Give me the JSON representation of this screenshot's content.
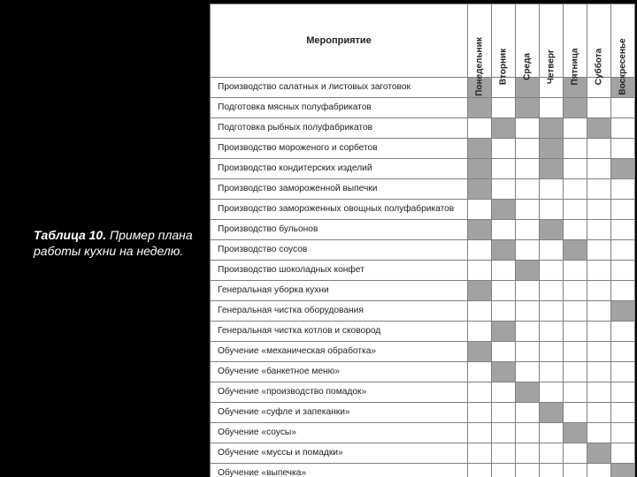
{
  "caption": {
    "bold": "Таблица 10.",
    "rest": " Пример плана работы кухни на неделю."
  },
  "table": {
    "activity_header": "Мероприятие",
    "days": [
      "Понедельник",
      "Вторник",
      "Среда",
      "Четверг",
      "Пятница",
      "Суббота",
      "Воскресенье"
    ],
    "rows": [
      {
        "label": "Производство салатных и листовых заготовок",
        "cells": [
          1,
          0,
          1,
          0,
          1,
          0,
          1
        ]
      },
      {
        "label": "Подготовка мясных полуфабрикатов",
        "cells": [
          1,
          0,
          1,
          0,
          1,
          0,
          0
        ]
      },
      {
        "label": "Подготовка рыбных полуфабрикатов",
        "cells": [
          0,
          1,
          0,
          1,
          0,
          1,
          0
        ]
      },
      {
        "label": "Производство мороженого и сорбетов",
        "cells": [
          1,
          0,
          0,
          1,
          0,
          0,
          0
        ]
      },
      {
        "label": "Производство кондитерских изделий",
        "cells": [
          1,
          0,
          0,
          1,
          0,
          0,
          1
        ]
      },
      {
        "label": "Производство замороженной выпечки",
        "cells": [
          1,
          0,
          0,
          0,
          0,
          0,
          0
        ]
      },
      {
        "label": "Производство замороженных овощных полуфабрикатов",
        "cells": [
          0,
          1,
          0,
          0,
          0,
          0,
          0
        ]
      },
      {
        "label": "Производство бульонов",
        "cells": [
          1,
          0,
          0,
          1,
          0,
          0,
          0
        ]
      },
      {
        "label": "Производство соусов",
        "cells": [
          0,
          1,
          0,
          0,
          1,
          0,
          0
        ]
      },
      {
        "label": "Производство шоколадных конфет",
        "cells": [
          0,
          0,
          1,
          0,
          0,
          0,
          0
        ]
      },
      {
        "label": "Генеральная уборка кухни",
        "cells": [
          1,
          0,
          0,
          0,
          0,
          0,
          0
        ]
      },
      {
        "label": "Генеральная чистка оборудования",
        "cells": [
          0,
          0,
          0,
          0,
          0,
          0,
          1
        ]
      },
      {
        "label": "Генеральная чистка котлов и сковород",
        "cells": [
          0,
          1,
          0,
          0,
          0,
          0,
          0
        ]
      },
      {
        "label": "Обучение «механическая обработка»",
        "cells": [
          1,
          0,
          0,
          0,
          0,
          0,
          0
        ]
      },
      {
        "label": "Обучение «банкетное меню»",
        "cells": [
          0,
          1,
          0,
          0,
          0,
          0,
          0
        ]
      },
      {
        "label": "Обучение «производство помадок»",
        "cells": [
          0,
          0,
          1,
          0,
          0,
          0,
          0
        ]
      },
      {
        "label": "Обучение «суфле и запеканки»",
        "cells": [
          0,
          0,
          0,
          1,
          0,
          0,
          0
        ]
      },
      {
        "label": "Обучение «соусы»",
        "cells": [
          0,
          0,
          0,
          0,
          1,
          0,
          0
        ]
      },
      {
        "label": "Обучение «муссы и помадки»",
        "cells": [
          0,
          0,
          0,
          0,
          0,
          1,
          0
        ]
      },
      {
        "label": "Обучение «выпечка»",
        "cells": [
          0,
          0,
          0,
          0,
          0,
          0,
          1
        ]
      }
    ]
  },
  "colors": {
    "page_bg": "#000000",
    "table_bg": "#ffffff",
    "cell_on": "#a2a2a2",
    "border": "#808080",
    "caption_text": "#ffffff"
  }
}
